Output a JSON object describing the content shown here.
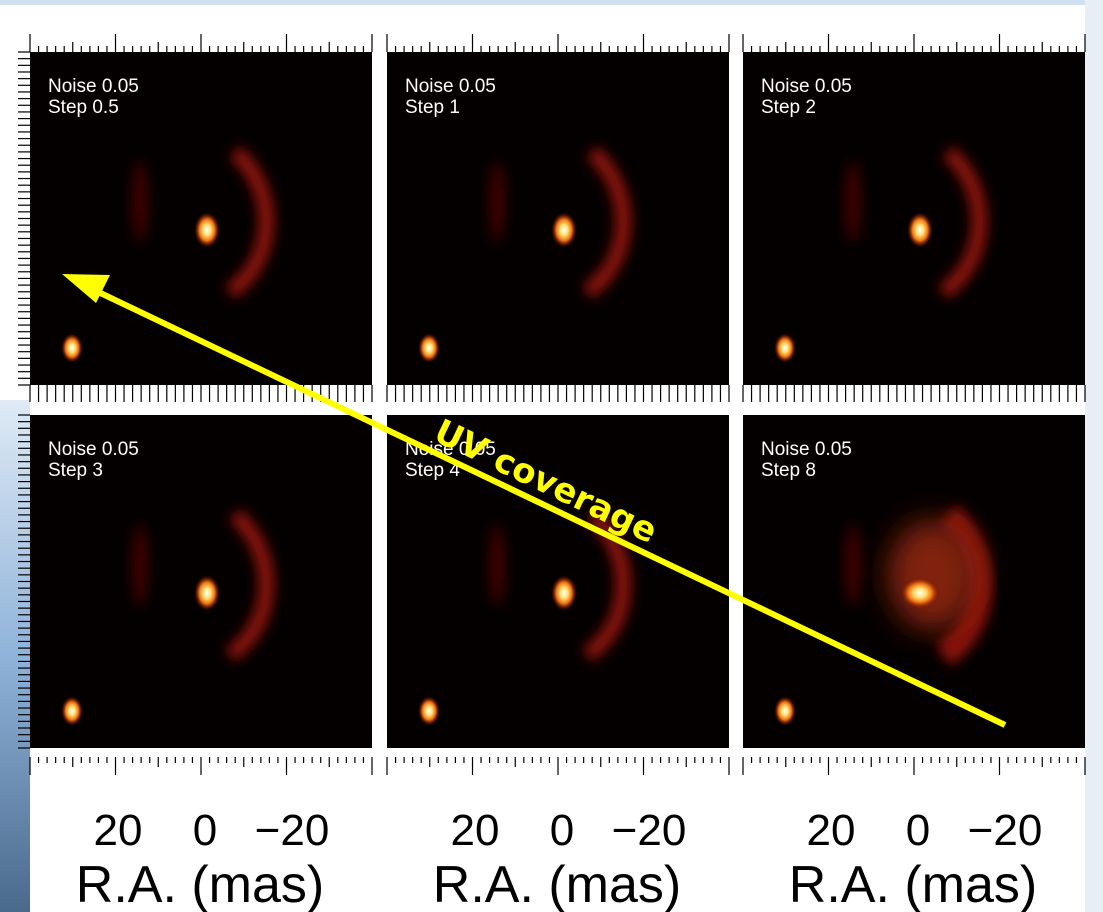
{
  "panels": [
    {
      "noise": "Noise 0.05",
      "step": "Step 0.5"
    },
    {
      "noise": "Noise 0.05",
      "step": "Step 1"
    },
    {
      "noise": "Noise 0.05",
      "step": "Step 2"
    },
    {
      "noise": "Noise 0.05",
      "step": "Step 3"
    },
    {
      "noise": "Noise 0.05",
      "step": "Step 4"
    },
    {
      "noise": "Noise 0.05",
      "step": "Step 8"
    }
  ],
  "x_ticks": [
    "20",
    "0",
    "−20"
  ],
  "x_label": "R.A. (mas)",
  "annotation": "UV coverage"
}
